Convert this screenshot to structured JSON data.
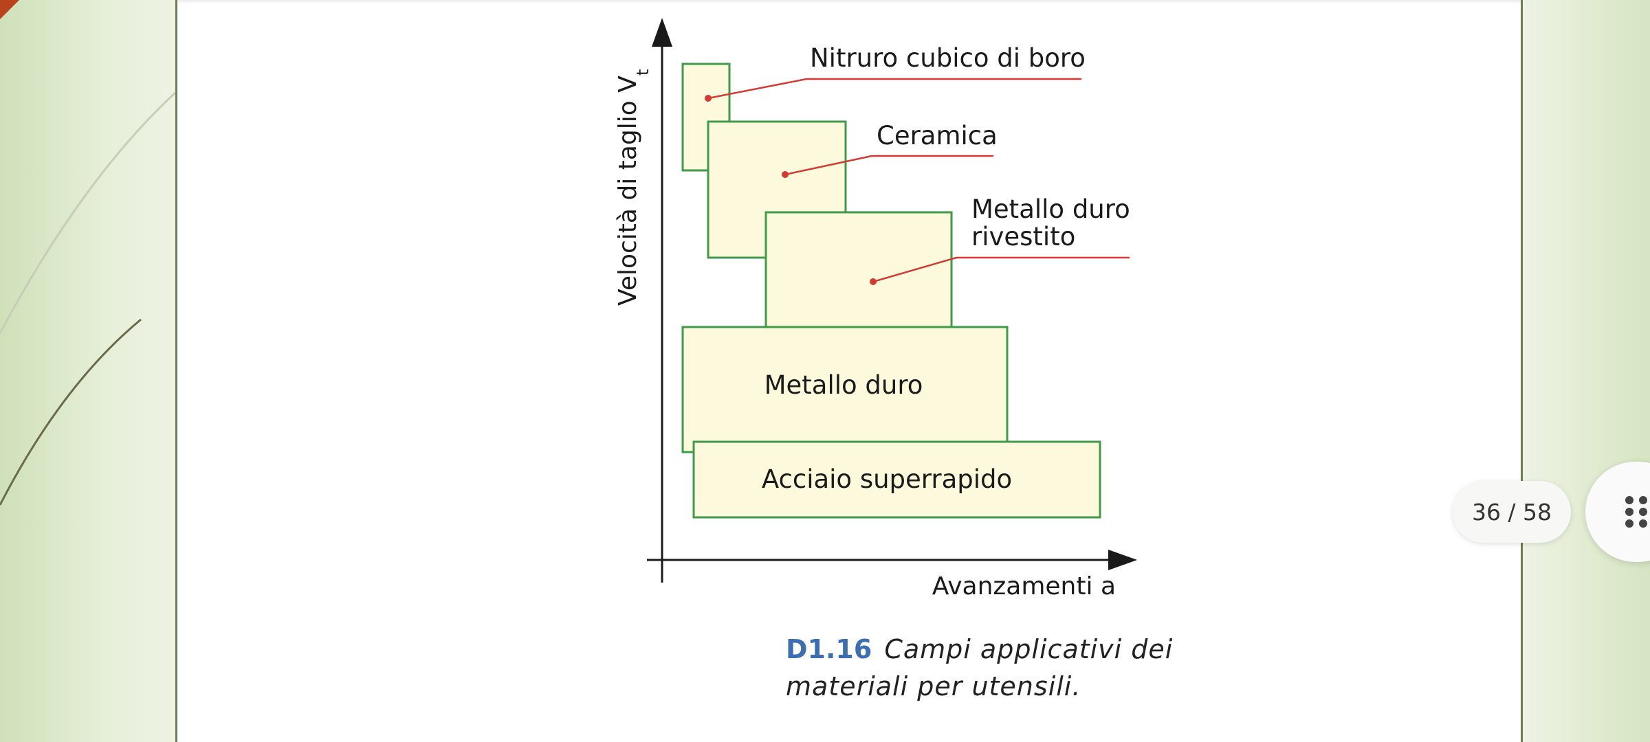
{
  "figure": {
    "labels": {
      "boron_nitride": "Nitruro cubico di boro",
      "ceramic": "Ceramica",
      "coated_carbide_line1": "Metallo duro",
      "coated_carbide_line2": "rivestito",
      "carbide": "Metallo duro",
      "hss": "Acciaio superrapido"
    },
    "y_axis_label": "Velocità di taglio  V",
    "y_axis_subscript": "t",
    "x_axis_label": "Avanzamenti  a",
    "colors": {
      "box_stroke": "#3f9a4a",
      "box_fill": "#fdf9dc",
      "leader": "#d23b33"
    }
  },
  "caption": {
    "number": "D1.16",
    "text": "Campi applicativi dei materiali per utensili."
  },
  "viewer": {
    "page_indicator": "36 / 58",
    "menu_icon": "grid-dots-icon"
  }
}
